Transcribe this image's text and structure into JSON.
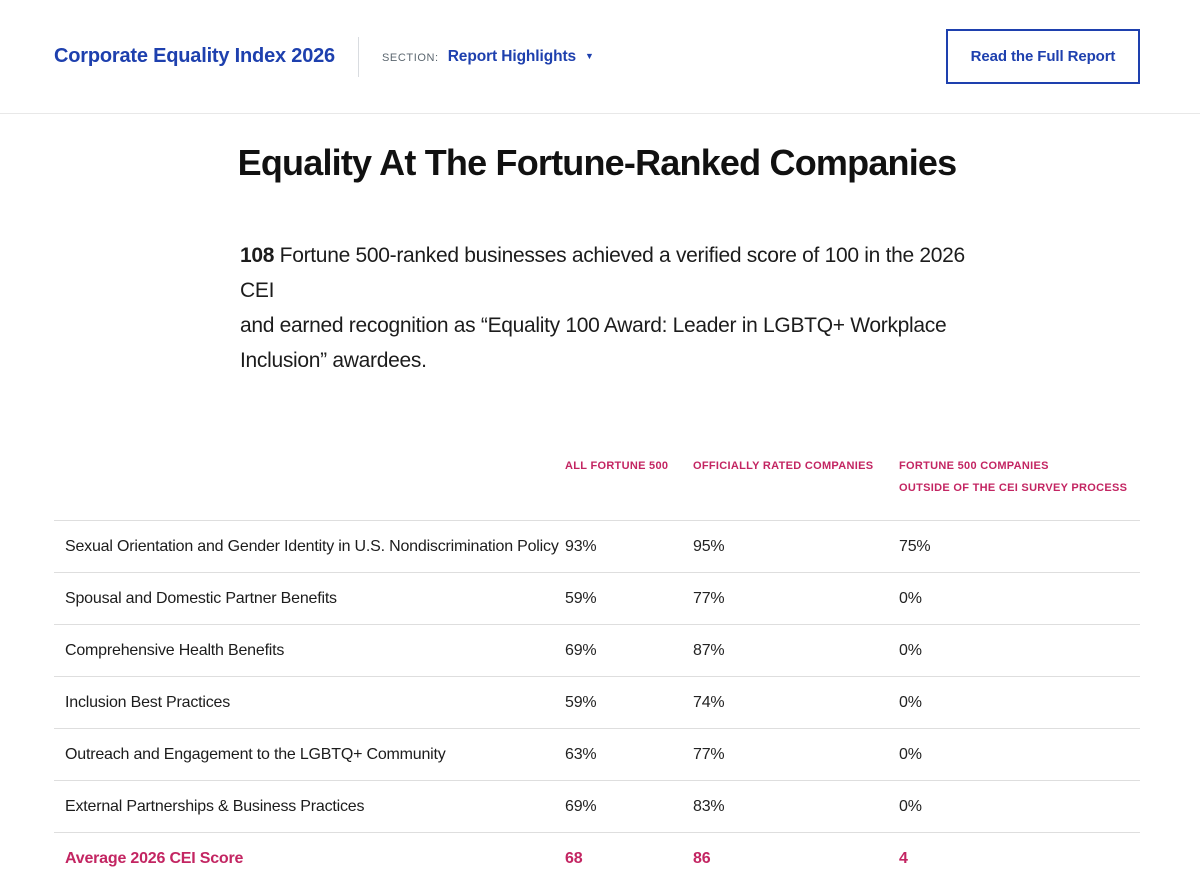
{
  "header": {
    "title": "Corporate Equality Index 2026",
    "section_label": "SECTION:",
    "section_value": "Report Highlights",
    "caret": "▼",
    "cta_label": "Read the Full Report"
  },
  "colors": {
    "accent_blue": "#1e40ae",
    "accent_pink": "#c32562"
  },
  "main": {
    "heading": "Equality At The Fortune-Ranked Companies",
    "intro": {
      "number": "108",
      "line1": " Fortune 500-ranked businesses achieved a verified score of 100 in the 2026 CEI",
      "line2": "and earned recognition as “Equality 100 Award: Leader in LGBTQ+ Workplace",
      "line3": "Inclusion” awardees."
    }
  },
  "table": {
    "columns": [
      "ALL FORTUNE 500",
      "OFFICIALLY RATED COMPANIES",
      "FORTUNE 500 COMPANIES\nOUTSIDE OF THE CEI SURVEY PROCESS"
    ],
    "rows": [
      {
        "label": "Sexual Orientation and Gender Identity in U.S. Nondiscrimination Policy",
        "values": [
          "93%",
          "95%",
          "75%"
        ]
      },
      {
        "label": "Spousal and Domestic Partner Benefits",
        "values": [
          "59%",
          "77%",
          "0%"
        ]
      },
      {
        "label": "Comprehensive Health Benefits",
        "values": [
          "69%",
          "87%",
          "0%"
        ]
      },
      {
        "label": "Inclusion Best Practices",
        "values": [
          "59%",
          "74%",
          "0%"
        ]
      },
      {
        "label": "Outreach and Engagement to the LGBTQ+ Community",
        "values": [
          "63%",
          "77%",
          "0%"
        ]
      },
      {
        "label": "External Partnerships & Business Practices",
        "values": [
          "69%",
          "83%",
          "0%"
        ]
      }
    ],
    "footer": {
      "label": "Average 2026 CEI Score",
      "values": [
        "68",
        "86",
        "4"
      ]
    }
  }
}
